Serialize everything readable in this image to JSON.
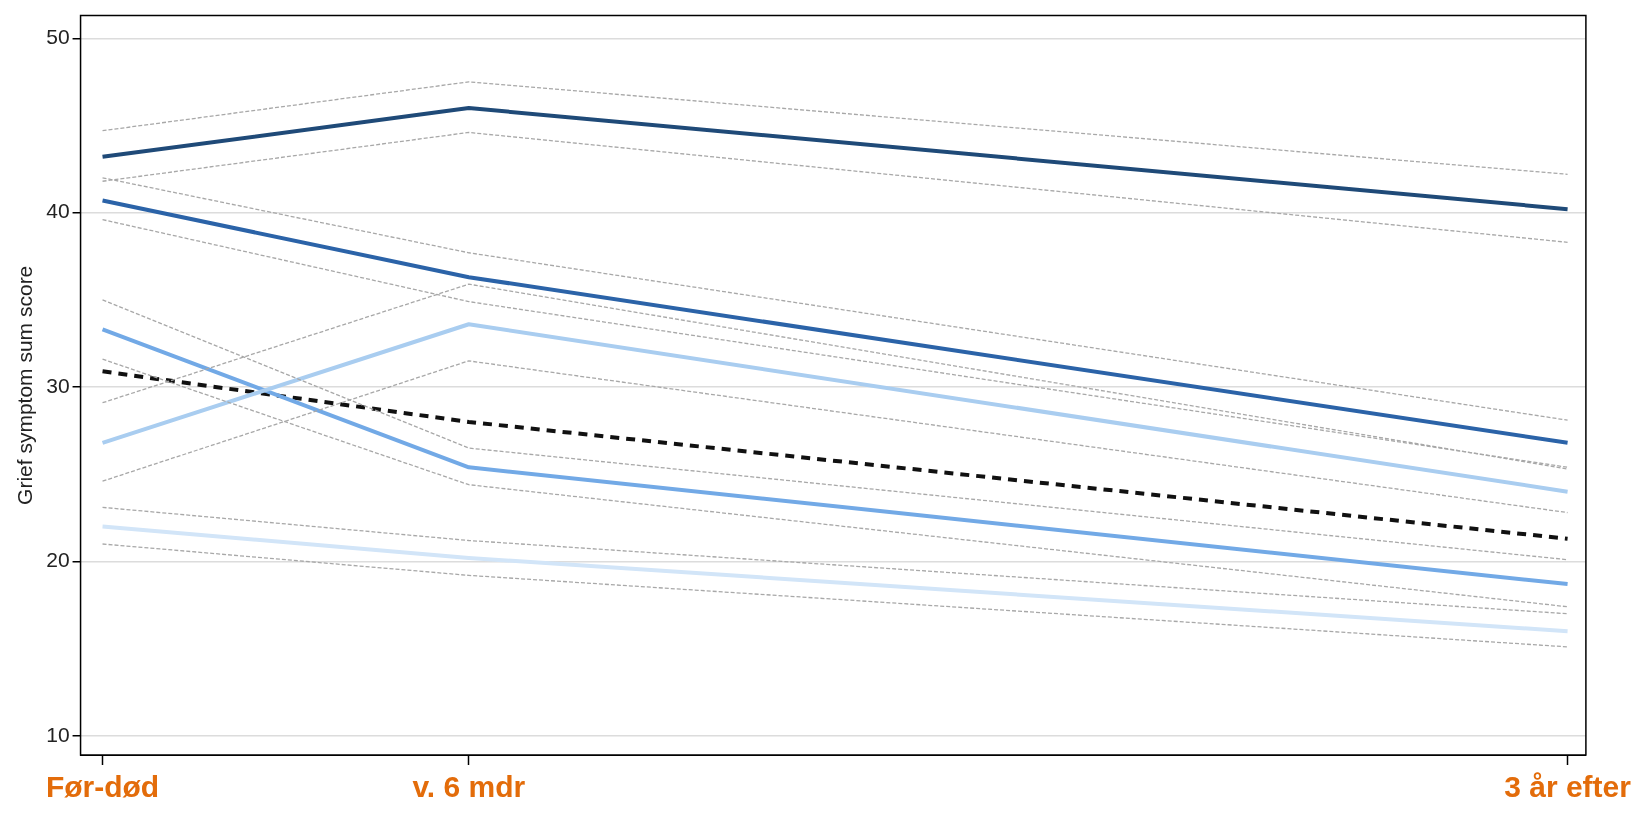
{
  "chart_data": {
    "type": "line",
    "ylabel": "Grief symptom sum score",
    "categories": [
      "Før-død",
      "v. 6 mdr",
      null,
      null,
      "3 år efter"
    ],
    "ylim": [
      8.9,
      51.3
    ],
    "yticks": [
      10,
      20,
      30,
      40,
      50
    ],
    "grid": "y",
    "legend": false,
    "marker": "none",
    "line_style": "solid",
    "series": [
      {
        "color": "#a8a8a8",
        "line_style": "dashed",
        "values": [
          44.7,
          47.5,
          null,
          null,
          42.2
        ]
      },
      {
        "color": "#a8a8a8",
        "line_style": "dashed",
        "values": [
          41.8,
          44.6,
          null,
          null,
          38.3
        ]
      },
      {
        "color": "#a8a8a8",
        "line_style": "dashed",
        "values": [
          42.0,
          37.7,
          null,
          null,
          28.1
        ]
      },
      {
        "color": "#a8a8a8",
        "line_style": "dashed",
        "values": [
          39.6,
          34.9,
          null,
          null,
          25.4
        ]
      },
      {
        "color": "#a8a8a8",
        "line_style": "dashed",
        "values": [
          29.1,
          35.9,
          null,
          null,
          25.3
        ]
      },
      {
        "color": "#a8a8a8",
        "line_style": "dashed",
        "values": [
          24.6,
          31.5,
          null,
          null,
          22.8
        ]
      },
      {
        "color": "#a8a8a8",
        "line_style": "dashed",
        "values": [
          35.0,
          26.5,
          null,
          null,
          20.1
        ]
      },
      {
        "color": "#a8a8a8",
        "line_style": "dashed",
        "values": [
          31.6,
          24.4,
          null,
          null,
          17.4
        ]
      },
      {
        "color": "#a8a8a8",
        "line_style": "dashed",
        "values": [
          23.1,
          21.2,
          null,
          null,
          17.0
        ]
      },
      {
        "color": "#a8a8a8",
        "line_style": "dashed",
        "values": [
          21.0,
          19.2,
          null,
          null,
          15.1
        ]
      },
      {
        "color": "#1f4a78",
        "values": [
          43.2,
          46.0,
          null,
          null,
          40.2
        ]
      },
      {
        "color": "#2b63a8",
        "values": [
          40.7,
          36.3,
          null,
          null,
          26.8
        ]
      },
      {
        "color": "#a9cdf0",
        "values": [
          26.8,
          33.6,
          null,
          null,
          24.0
        ]
      },
      {
        "color": "#72a9e6",
        "values": [
          33.3,
          25.4,
          null,
          null,
          18.7
        ]
      },
      {
        "color": "#d2e5f8",
        "values": [
          22.0,
          20.2,
          null,
          null,
          16.0
        ]
      },
      {
        "color": "#111111",
        "line_style": "dashed",
        "values": [
          30.9,
          28.0,
          null,
          null,
          21.3
        ]
      }
    ]
  }
}
